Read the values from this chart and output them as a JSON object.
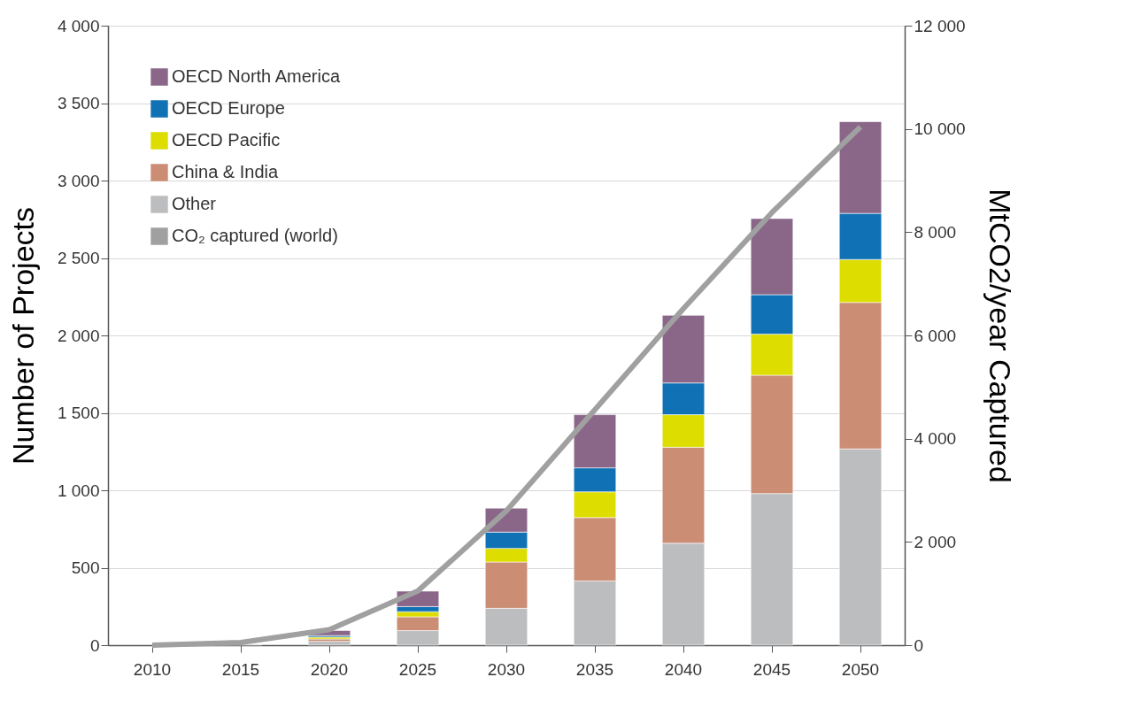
{
  "chart_data": {
    "type": "bar",
    "stacked": true,
    "ylabel": "Number of Projects",
    "y2label": "MtCO2/year Captured",
    "categories": [
      "2010",
      "2015",
      "2020",
      "2025",
      "2030",
      "2035",
      "2040",
      "2045",
      "2050"
    ],
    "ylim": [
      0,
      4000
    ],
    "yticks": [
      {
        "value": 0,
        "label": "0"
      },
      {
        "value": 500,
        "label": "500"
      },
      {
        "value": 1000,
        "label": "1 000"
      },
      {
        "value": 1500,
        "label": "1 500"
      },
      {
        "value": 2000,
        "label": "2 000"
      },
      {
        "value": 2500,
        "label": "2 500"
      },
      {
        "value": 3000,
        "label": "3 000"
      },
      {
        "value": 3500,
        "label": "3 500"
      },
      {
        "value": 4000,
        "label": "4 000"
      }
    ],
    "y2lim": [
      0,
      12000
    ],
    "y2ticks": [
      {
        "value": 0,
        "label": "0"
      },
      {
        "value": 2000,
        "label": "2 000"
      },
      {
        "value": 4000,
        "label": "4 000"
      },
      {
        "value": 6000,
        "label": "6 000"
      },
      {
        "value": 8000,
        "label": "8 000"
      },
      {
        "value": 10000,
        "label": "10 000"
      },
      {
        "value": 12000,
        "label": "12 000"
      }
    ],
    "grid": "y",
    "legend": "top left",
    "series": [
      {
        "name": "Other",
        "color": "#bcbdbf",
        "values": [
          0,
          5,
          25,
          94,
          238,
          415,
          658,
          979,
          1267
        ]
      },
      {
        "name": "China & India",
        "color": "#cb8d74",
        "values": [
          0,
          0,
          15,
          89,
          299,
          409,
          620,
          764,
          946
        ]
      },
      {
        "name": "OECD Pacific",
        "color": "#dddd00",
        "values": [
          0,
          0,
          12,
          33,
          88,
          166,
          210,
          265,
          277
        ]
      },
      {
        "name": "OECD Europe",
        "color": "#1072b5",
        "values": [
          0,
          0,
          10,
          33,
          105,
          155,
          205,
          255,
          298
        ]
      },
      {
        "name": "OECD North America",
        "color": "#8a6789",
        "values": [
          0,
          0,
          33,
          100,
          155,
          343,
          437,
          492,
          592
        ]
      },
      {
        "name": "CO₂ captured (world)",
        "type": "line",
        "axis": "y2",
        "color": "#a0a0a0",
        "values": [
          0,
          50,
          300,
          1050,
          2600,
          4560,
          6520,
          8380,
          10040
        ]
      }
    ]
  }
}
